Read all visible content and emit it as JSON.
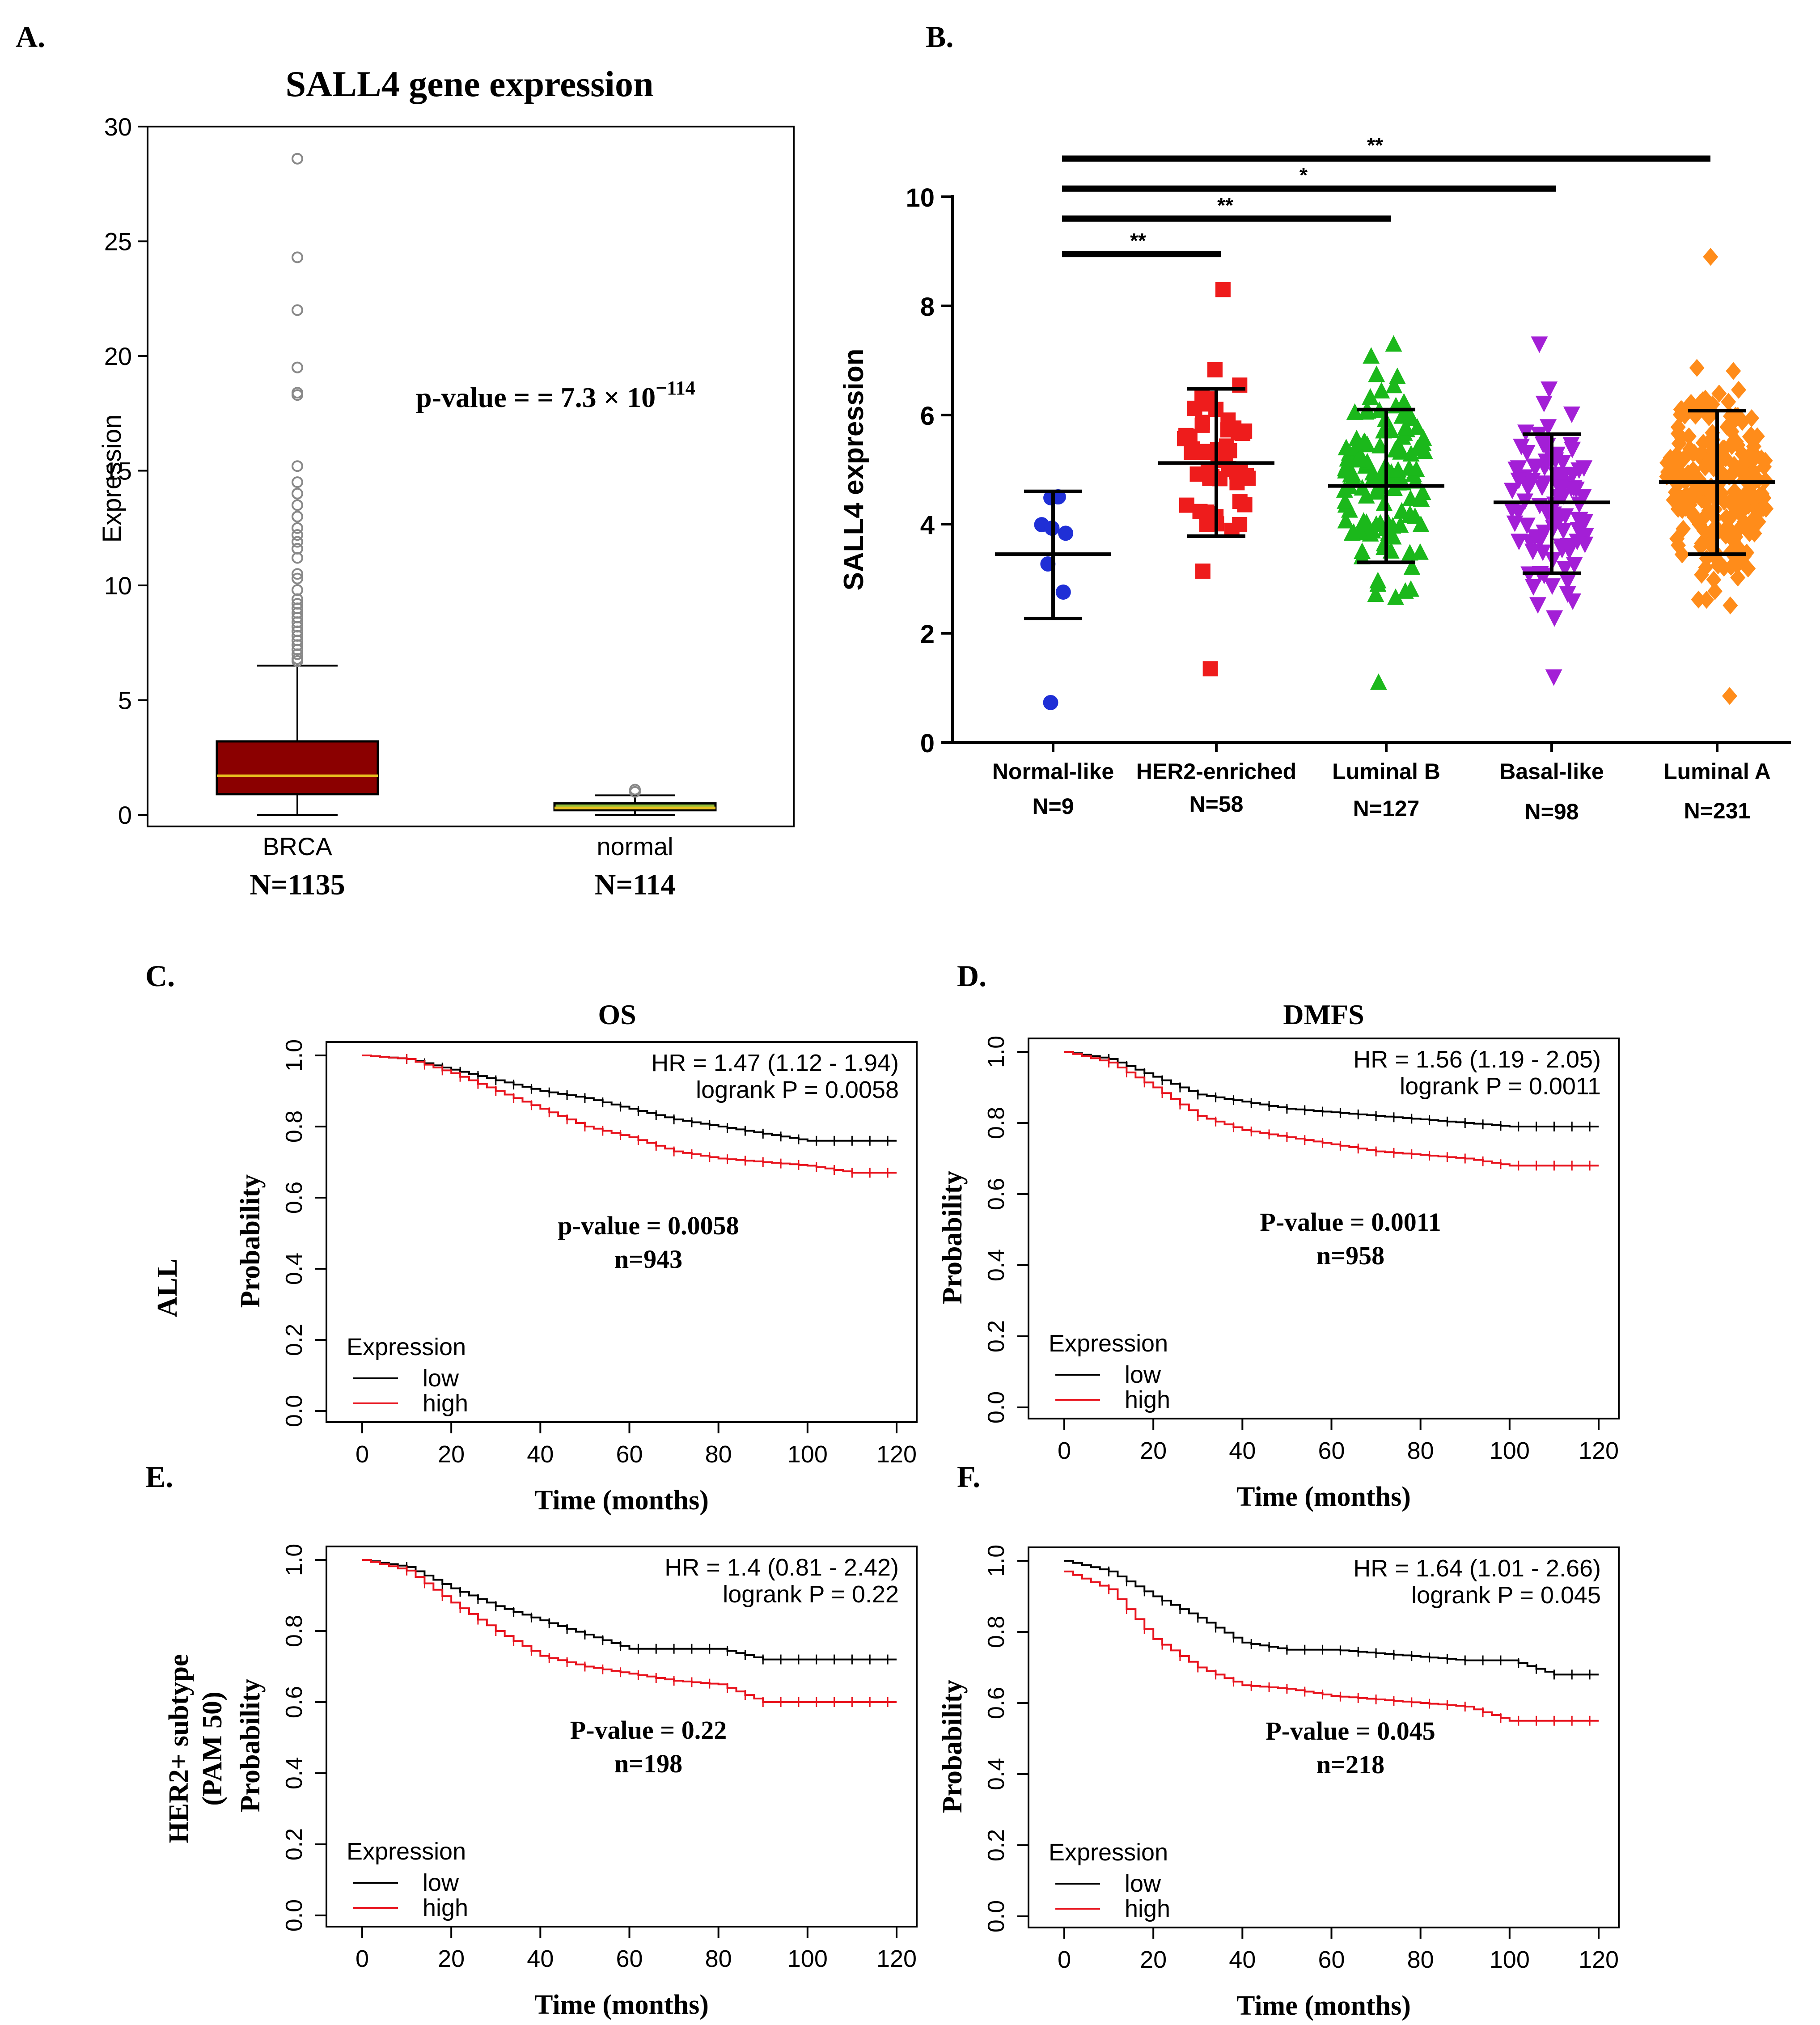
{
  "colors": {
    "axis": "#000000",
    "box_fill_brca": "#8b0000",
    "box_fill_normal": "#8fbc3a",
    "median_line": "#e8c020",
    "outlier": "#888888",
    "km_low": "#000000",
    "km_high": "#e8141e",
    "normal_like": "#1f2fd6",
    "her2": "#ee1c1c",
    "lumB": "#1bb81b",
    "basal": "#a31fd6",
    "lumA": "#ff8c1a"
  },
  "chart_data": [
    {
      "panel": "A.",
      "type": "box",
      "title": "SALL4  gene expression",
      "ylabel": "Expression",
      "ylim": [
        0,
        30
      ],
      "yticks": [
        0,
        5,
        10,
        15,
        20,
        25,
        30
      ],
      "annotation": {
        "prefix": "p-value = = 7.3 × 10",
        "exponent": "−114"
      },
      "groups": [
        {
          "label": "BRCA",
          "n_label": "N=1135",
          "min": 0.0,
          "q1": 0.9,
          "median": 1.7,
          "q3": 3.2,
          "max": 6.5,
          "outliers": [
            28.6,
            24.3,
            22.0,
            19.5,
            18.4,
            18.3,
            15.2,
            14.5,
            14.0,
            13.5,
            13.0,
            12.5,
            12.2,
            11.9,
            11.6,
            11.2,
            10.5,
            10.3,
            9.8,
            9.4,
            9.2,
            9.0,
            8.8,
            8.6,
            8.4,
            8.2,
            8.0,
            7.8,
            7.6,
            7.4,
            7.2,
            7.0,
            6.8,
            6.7
          ]
        },
        {
          "label": "normal",
          "n_label": "N=114",
          "min": 0.0,
          "q1": 0.2,
          "median": 0.3,
          "q3": 0.5,
          "max": 0.85,
          "outliers": [
            1.1,
            1.0
          ]
        }
      ]
    },
    {
      "panel": "B.",
      "type": "scatter",
      "ylabel": "SALL4 expression",
      "ylim": [
        0,
        10
      ],
      "yticks": [
        0,
        2,
        4,
        6,
        8,
        10
      ],
      "groups": [
        {
          "name": "Normal-like",
          "n_label": "N=9",
          "marker": "circle",
          "mean": 3.45,
          "sd_low": 2.27,
          "sd_high": 4.6,
          "min": 0.73,
          "max": 4.5,
          "count": 9
        },
        {
          "name": "HER2-enriched",
          "n_label": "N=58",
          "marker": "square",
          "mean": 5.12,
          "sd_low": 3.78,
          "sd_high": 6.48,
          "min": 1.35,
          "max": 8.3,
          "count": 58
        },
        {
          "name": "Luminal B",
          "n_label": "N=127",
          "marker": "triangle-up",
          "mean": 4.7,
          "sd_low": 3.3,
          "sd_high": 6.1,
          "min": 1.1,
          "max": 7.3,
          "count": 127
        },
        {
          "name": "Basal-like",
          "n_label": "N=98",
          "marker": "triangle-down",
          "mean": 4.4,
          "sd_low": 3.1,
          "sd_high": 5.65,
          "min": 1.2,
          "max": 7.3,
          "count": 98
        },
        {
          "name": "Luminal A",
          "n_label": "N=231",
          "marker": "diamond",
          "mean": 4.77,
          "sd_low": 3.45,
          "sd_high": 6.08,
          "min": 0.85,
          "max": 8.9,
          "count": 231
        }
      ],
      "significance": [
        {
          "from": "Normal-like",
          "to": "HER2-enriched",
          "label": "**",
          "y": 8.95
        },
        {
          "from": "Normal-like",
          "to": "Luminal B",
          "label": "**",
          "y": 9.6
        },
        {
          "from": "Normal-like",
          "to": "Basal-like",
          "label": "*",
          "y": 10.15
        },
        {
          "from": "Normal-like",
          "to": "Luminal A",
          "label": "**",
          "y": 10.7
        }
      ]
    },
    {
      "panel": "C.",
      "type": "line",
      "title": "OS",
      "row_label": "ALL",
      "hr_text": "HR = 1.47 (1.12 - 1.94)",
      "logrank_text": "logrank P = 0.0058",
      "pvalue_text": "p-value = 0.0058",
      "n_text": "n=943",
      "xlabel": "Time (months)",
      "ylabel": "Probability",
      "xlim": [
        0,
        120
      ],
      "ylim": [
        0,
        1
      ],
      "xticks": [
        0,
        20,
        40,
        60,
        80,
        100,
        120
      ],
      "yticks": [
        "0.0",
        "0.2",
        "0.4",
        "0.6",
        "0.8",
        "1.0"
      ],
      "legend_title": "Expression",
      "legend_low": "low",
      "legend_high": "high",
      "series": [
        {
          "name": "low",
          "x": [
            0,
            10,
            20,
            30,
            40,
            50,
            60,
            70,
            80,
            90,
            100,
            110,
            120
          ],
          "y": [
            1.0,
            0.99,
            0.96,
            0.93,
            0.9,
            0.88,
            0.85,
            0.82,
            0.8,
            0.78,
            0.76,
            0.76,
            0.76
          ]
        },
        {
          "name": "high",
          "x": [
            0,
            10,
            20,
            30,
            40,
            50,
            60,
            70,
            80,
            90,
            100,
            110,
            120
          ],
          "y": [
            1.0,
            0.99,
            0.95,
            0.9,
            0.85,
            0.8,
            0.77,
            0.73,
            0.71,
            0.7,
            0.69,
            0.67,
            0.67
          ]
        }
      ]
    },
    {
      "panel": "D.",
      "type": "line",
      "title": "DMFS",
      "hr_text": "HR = 1.56 (1.19 - 2.05)",
      "logrank_text": "logrank P = 0.0011",
      "pvalue_text": "P-value = 0.0011",
      "n_text": "n=958",
      "xlabel": "Time (months)",
      "ylabel": "Probability",
      "xlim": [
        0,
        120
      ],
      "ylim": [
        0,
        1
      ],
      "xticks": [
        0,
        20,
        40,
        60,
        80,
        100,
        120
      ],
      "yticks": [
        "0.0",
        "0.2",
        "0.4",
        "0.6",
        "0.8",
        "1.0"
      ],
      "legend_title": "Expression",
      "legend_low": "low",
      "legend_high": "high",
      "series": [
        {
          "name": "low",
          "x": [
            0,
            10,
            20,
            30,
            40,
            50,
            60,
            70,
            80,
            90,
            100,
            110,
            120
          ],
          "y": [
            1.0,
            0.98,
            0.93,
            0.88,
            0.86,
            0.84,
            0.83,
            0.82,
            0.81,
            0.8,
            0.79,
            0.79,
            0.79
          ]
        },
        {
          "name": "high",
          "x": [
            0,
            10,
            20,
            30,
            40,
            50,
            60,
            70,
            80,
            90,
            100,
            110,
            120
          ],
          "y": [
            1.0,
            0.97,
            0.9,
            0.82,
            0.78,
            0.76,
            0.74,
            0.72,
            0.71,
            0.7,
            0.68,
            0.68,
            0.68
          ]
        }
      ]
    },
    {
      "panel": "E.",
      "type": "line",
      "row_label": "HER2+ subtype\n(PAM 50)",
      "hr_text": "HR = 1.4 (0.81 - 2.42)",
      "logrank_text": "logrank P = 0.22",
      "pvalue_text": "P-value = 0.22",
      "n_text": "n=198",
      "xlabel": "Time (months)",
      "ylabel": "Probability",
      "xlim": [
        0,
        120
      ],
      "ylim": [
        0,
        1
      ],
      "xticks": [
        0,
        20,
        40,
        60,
        80,
        100,
        120
      ],
      "yticks": [
        "0.0",
        "0.2",
        "0.4",
        "0.6",
        "0.8",
        "1.0"
      ],
      "legend_title": "Expression",
      "legend_low": "low",
      "legend_high": "high",
      "series": [
        {
          "name": "low",
          "x": [
            0,
            10,
            20,
            30,
            40,
            50,
            60,
            70,
            80,
            90,
            100,
            110,
            120
          ],
          "y": [
            1.0,
            0.98,
            0.92,
            0.87,
            0.83,
            0.79,
            0.75,
            0.75,
            0.75,
            0.72,
            0.72,
            0.72,
            0.72
          ]
        },
        {
          "name": "high",
          "x": [
            0,
            10,
            20,
            30,
            40,
            50,
            60,
            70,
            80,
            90,
            100,
            110,
            120
          ],
          "y": [
            1.0,
            0.97,
            0.88,
            0.8,
            0.73,
            0.7,
            0.68,
            0.66,
            0.65,
            0.6,
            0.6,
            0.6,
            0.6
          ]
        }
      ]
    },
    {
      "panel": "F.",
      "type": "line",
      "hr_text": "HR = 1.64 (1.01 - 2.66)",
      "logrank_text": "logrank P = 0.045",
      "pvalue_text": "P-value = 0.045",
      "n_text": "n=218",
      "xlabel": "Time (months)",
      "ylabel": "Probability",
      "xlim": [
        0,
        120
      ],
      "ylim": [
        0,
        1
      ],
      "xticks": [
        0,
        20,
        40,
        60,
        80,
        100,
        120
      ],
      "yticks": [
        "0.0",
        "0.2",
        "0.4",
        "0.6",
        "0.8",
        "1.0"
      ],
      "legend_title": "Expression",
      "legend_low": "low",
      "legend_high": "high",
      "series": [
        {
          "name": "low",
          "x": [
            0,
            10,
            20,
            30,
            40,
            50,
            60,
            70,
            80,
            90,
            100,
            110,
            120
          ],
          "y": [
            1.0,
            0.97,
            0.9,
            0.84,
            0.77,
            0.75,
            0.75,
            0.74,
            0.73,
            0.72,
            0.72,
            0.68,
            0.68
          ]
        },
        {
          "name": "high",
          "x": [
            0,
            10,
            20,
            30,
            40,
            50,
            60,
            70,
            80,
            90,
            100,
            110,
            120
          ],
          "y": [
            0.97,
            0.92,
            0.78,
            0.7,
            0.65,
            0.64,
            0.62,
            0.61,
            0.6,
            0.59,
            0.55,
            0.55,
            0.55
          ]
        }
      ]
    }
  ]
}
